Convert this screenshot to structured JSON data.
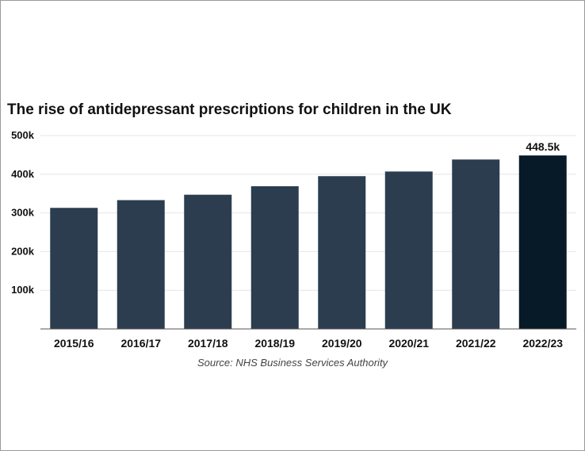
{
  "chart_data": {
    "type": "bar",
    "title": "The rise of antidepressant prescriptions for children in the UK",
    "categories": [
      "2015/16",
      "2016/17",
      "2017/18",
      "2018/19",
      "2019/20",
      "2020/21",
      "2021/22",
      "2022/23"
    ],
    "values": [
      313000,
      333000,
      347000,
      369000,
      395000,
      407000,
      438000,
      448500
    ],
    "ylim": [
      0,
      500000
    ],
    "yticks": [
      100000,
      200000,
      300000,
      400000,
      500000
    ],
    "ytick_labels": [
      "100k",
      "200k",
      "300k",
      "400k",
      "500k"
    ],
    "data_labels": [
      {
        "category": "2022/23",
        "text": "448.5k"
      }
    ],
    "source": "Source: NHS Business Services Authority",
    "grid": true,
    "bar_color": "#2b3d4f",
    "highlight_color": "#071a28",
    "highlight_category": "2022/23",
    "grid_color": "#e6e6e6",
    "axis_color": "#555555"
  }
}
